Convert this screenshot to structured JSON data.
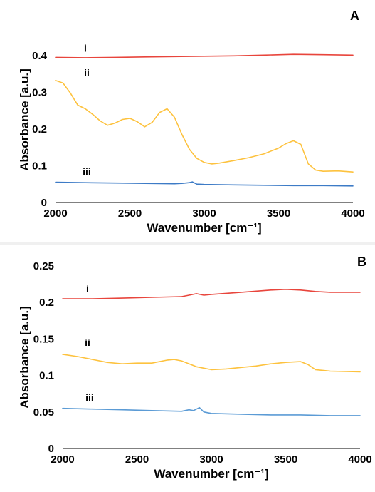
{
  "chart_data": [
    {
      "type": "line",
      "panel_label": "A",
      "xlabel": "Wavenumber [cm⁻¹]",
      "ylabel": "Absorbance [a.u.]",
      "xlim": [
        2000,
        4000
      ],
      "ylim": [
        0,
        0.45
      ],
      "x_ticks": [
        2000,
        2500,
        3000,
        3500,
        4000
      ],
      "y_ticks": [
        0,
        0.1,
        0.2,
        0.3,
        0.4
      ],
      "y_tick_labels": [
        "0",
        "0.1",
        "0.2",
        "0.3",
        "0.4"
      ],
      "grid": false,
      "series": [
        {
          "name": "i",
          "color": "#e8453c",
          "x": [
            2000,
            2200,
            2400,
            2600,
            2800,
            3000,
            3200,
            3400,
            3600,
            3800,
            4000
          ],
          "y": [
            0.395,
            0.394,
            0.395,
            0.396,
            0.397,
            0.398,
            0.399,
            0.401,
            0.403,
            0.402,
            0.401
          ]
        },
        {
          "name": "ii",
          "color": "#fdc23e",
          "x": [
            2000,
            2050,
            2100,
            2150,
            2200,
            2250,
            2300,
            2350,
            2400,
            2450,
            2500,
            2550,
            2600,
            2650,
            2700,
            2750,
            2800,
            2850,
            2900,
            2950,
            3000,
            3050,
            3100,
            3200,
            3300,
            3400,
            3500,
            3550,
            3600,
            3650,
            3700,
            3750,
            3800,
            3900,
            4000
          ],
          "y": [
            0.332,
            0.325,
            0.298,
            0.265,
            0.255,
            0.24,
            0.222,
            0.21,
            0.216,
            0.226,
            0.229,
            0.22,
            0.206,
            0.218,
            0.245,
            0.255,
            0.232,
            0.185,
            0.145,
            0.12,
            0.109,
            0.105,
            0.107,
            0.114,
            0.122,
            0.132,
            0.148,
            0.16,
            0.168,
            0.158,
            0.105,
            0.088,
            0.085,
            0.086,
            0.083
          ]
        },
        {
          "name": "iii",
          "color": "#3d7bc6",
          "x": [
            2000,
            2200,
            2400,
            2600,
            2800,
            2850,
            2900,
            2920,
            2950,
            3000,
            3200,
            3400,
            3600,
            3800,
            4000
          ],
          "y": [
            0.055,
            0.054,
            0.053,
            0.052,
            0.051,
            0.052,
            0.054,
            0.056,
            0.05,
            0.049,
            0.048,
            0.047,
            0.046,
            0.046,
            0.045
          ]
        }
      ]
    },
    {
      "type": "line",
      "panel_label": "B",
      "xlabel": "Wavenumber [cm⁻¹]",
      "ylabel": "Absorbance [a.u.]",
      "xlim": [
        2000,
        4000
      ],
      "ylim": [
        0,
        0.25
      ],
      "x_ticks": [
        2000,
        2500,
        3000,
        3500,
        4000
      ],
      "y_ticks": [
        0,
        0.05,
        0.1,
        0.15,
        0.2,
        0.25
      ],
      "y_tick_labels": [
        "0",
        "0.05",
        "0.1",
        "0.15",
        "0.2",
        "0.25"
      ],
      "grid": false,
      "series": [
        {
          "name": "i",
          "color": "#e8453c",
          "x": [
            2000,
            2200,
            2400,
            2600,
            2800,
            2850,
            2900,
            2950,
            3000,
            3200,
            3400,
            3500,
            3600,
            3700,
            3800,
            4000
          ],
          "y": [
            0.205,
            0.205,
            0.206,
            0.207,
            0.208,
            0.21,
            0.212,
            0.21,
            0.211,
            0.214,
            0.217,
            0.218,
            0.217,
            0.215,
            0.214,
            0.214
          ]
        },
        {
          "name": "ii",
          "color": "#fdc23e",
          "x": [
            2000,
            2100,
            2200,
            2300,
            2400,
            2500,
            2600,
            2700,
            2750,
            2800,
            2900,
            3000,
            3100,
            3200,
            3300,
            3400,
            3500,
            3600,
            3650,
            3700,
            3750,
            3800,
            4000
          ],
          "y": [
            0.129,
            0.126,
            0.122,
            0.118,
            0.116,
            0.117,
            0.117,
            0.121,
            0.122,
            0.12,
            0.112,
            0.108,
            0.109,
            0.111,
            0.113,
            0.116,
            0.118,
            0.119,
            0.115,
            0.108,
            0.107,
            0.106,
            0.105
          ]
        },
        {
          "name": "iii",
          "color": "#5b9bd5",
          "x": [
            2000,
            2200,
            2400,
            2600,
            2800,
            2850,
            2880,
            2920,
            2950,
            3000,
            3200,
            3400,
            3600,
            3800,
            4000
          ],
          "y": [
            0.055,
            0.054,
            0.053,
            0.052,
            0.051,
            0.053,
            0.052,
            0.056,
            0.05,
            0.048,
            0.047,
            0.046,
            0.046,
            0.045,
            0.045
          ]
        }
      ]
    }
  ]
}
